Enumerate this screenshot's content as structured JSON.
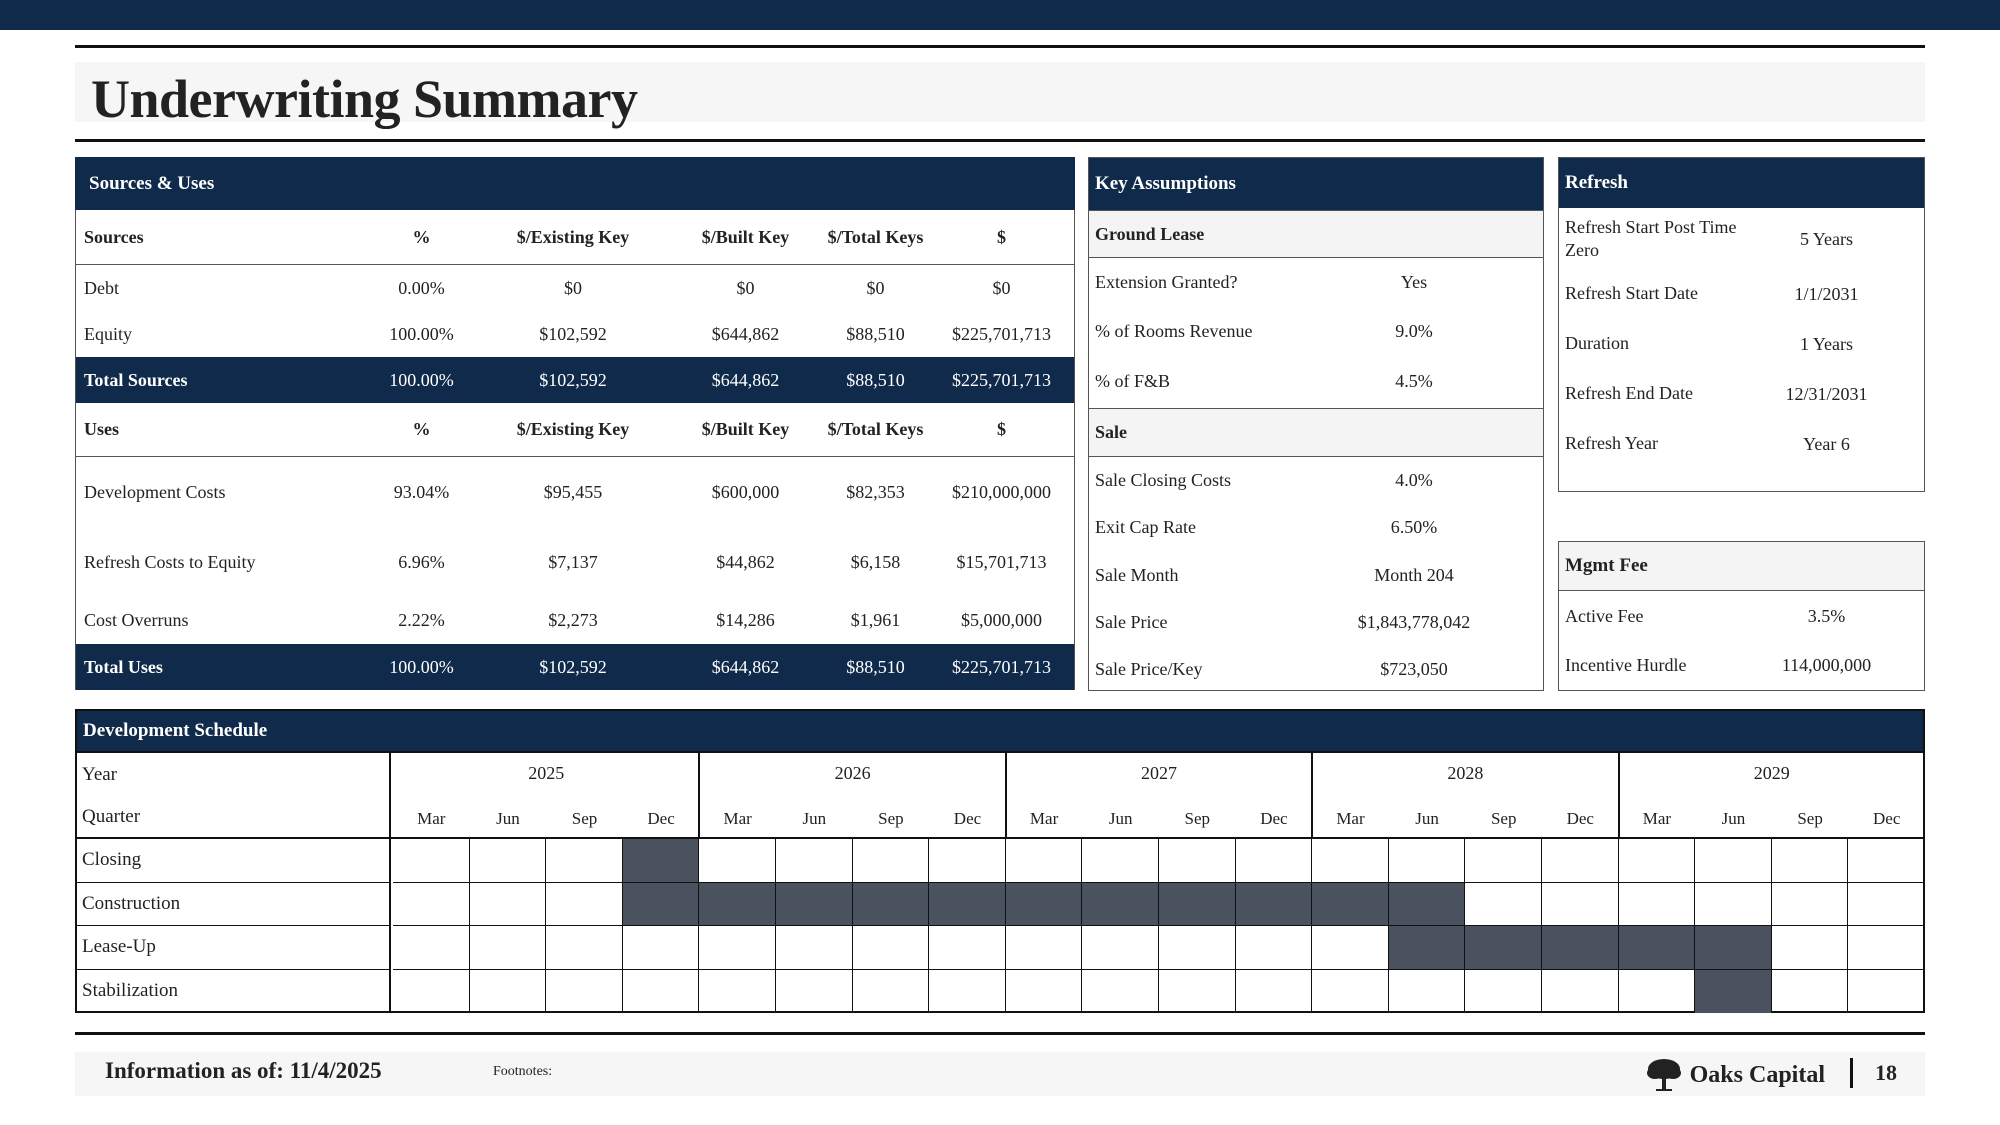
{
  "title": "Underwriting Summary",
  "sources_uses": {
    "header": "Sources & Uses",
    "columns_sources": [
      "Sources",
      "%",
      "$/Existing Key",
      "$/Built Key",
      "$/Total Keys",
      "$"
    ],
    "sources": [
      [
        "Debt",
        "0.00%",
        "$0",
        "$0",
        "$0",
        "$0"
      ],
      [
        "Equity",
        "100.00%",
        "$102,592",
        "$644,862",
        "$88,510",
        "$225,701,713"
      ]
    ],
    "total_sources": [
      "Total Sources",
      "100.00%",
      "$102,592",
      "$644,862",
      "$88,510",
      "$225,701,713"
    ],
    "columns_uses": [
      "Uses",
      "%",
      "$/Existing Key",
      "$/Built Key",
      "$/Total Keys",
      "$"
    ],
    "uses": [
      [
        "Development Costs",
        "93.04%",
        "$95,455",
        "$600,000",
        "$82,353",
        "$210,000,000"
      ],
      [
        "Refresh Costs to Equity",
        "6.96%",
        "$7,137",
        "$44,862",
        "$6,158",
        "$15,701,713"
      ],
      [
        "Cost Overruns",
        "2.22%",
        "$2,273",
        "$14,286",
        "$1,961",
        "$5,000,000"
      ]
    ],
    "total_uses": [
      "Total Uses",
      "100.00%",
      "$102,592",
      "$644,862",
      "$88,510",
      "$225,701,713"
    ]
  },
  "key_assumptions": {
    "header": "Key Assumptions",
    "ground_lease_label": "Ground Lease",
    "ground_lease": [
      [
        "Extension Granted?",
        "Yes"
      ],
      [
        "% of Rooms Revenue",
        "9.0%"
      ],
      [
        "% of F&B",
        "4.5%"
      ]
    ],
    "sale_label": "Sale",
    "sale": [
      [
        "Sale Closing Costs",
        "4.0%"
      ],
      [
        "Exit Cap Rate",
        "6.50%"
      ],
      [
        "Sale Month",
        "Month 204"
      ],
      [
        "Sale Price",
        "$1,843,778,042"
      ],
      [
        "Sale Price/Key",
        "$723,050"
      ]
    ]
  },
  "refresh": {
    "header": "Refresh",
    "rows": [
      [
        "Refresh Start Post Time Zero",
        "5 Years"
      ],
      [
        "Refresh Start Date",
        "1/1/2031"
      ],
      [
        "Duration",
        "1 Years"
      ],
      [
        "Refresh End Date",
        "12/31/2031"
      ],
      [
        "Refresh Year",
        "Year 6"
      ]
    ]
  },
  "mgmt_fee": {
    "header": "Mgmt Fee",
    "rows": [
      [
        "Active Fee",
        "3.5%"
      ],
      [
        "Incentive Hurdle",
        "114,000,000"
      ]
    ]
  },
  "schedule": {
    "header": "Development Schedule",
    "year_label": "Year",
    "quarter_label": "Quarter",
    "years": [
      "2025",
      "2026",
      "2027",
      "2028",
      "2029"
    ],
    "quarters": [
      "Mar",
      "Jun",
      "Sep",
      "Dec"
    ],
    "rows": [
      {
        "label": "Closing",
        "filled": [
          3
        ]
      },
      {
        "label": "Construction",
        "filled": [
          3,
          4,
          5,
          6,
          7,
          8,
          9,
          10,
          11,
          12,
          13
        ]
      },
      {
        "label": "Lease-Up",
        "filled": [
          13,
          14,
          15,
          16,
          17
        ]
      },
      {
        "label": "Stabilization",
        "filled": [
          17
        ]
      }
    ],
    "fill_color": "#4a5260"
  },
  "footer": {
    "info": "Information as of: 11/4/2025",
    "notes": "Footnotes:",
    "brand": "Oaks Capital",
    "page": "18",
    "brand_icon": "tree-icon"
  },
  "colors": {
    "navy": "#0f2a4a",
    "light": "#f6f6f6"
  }
}
